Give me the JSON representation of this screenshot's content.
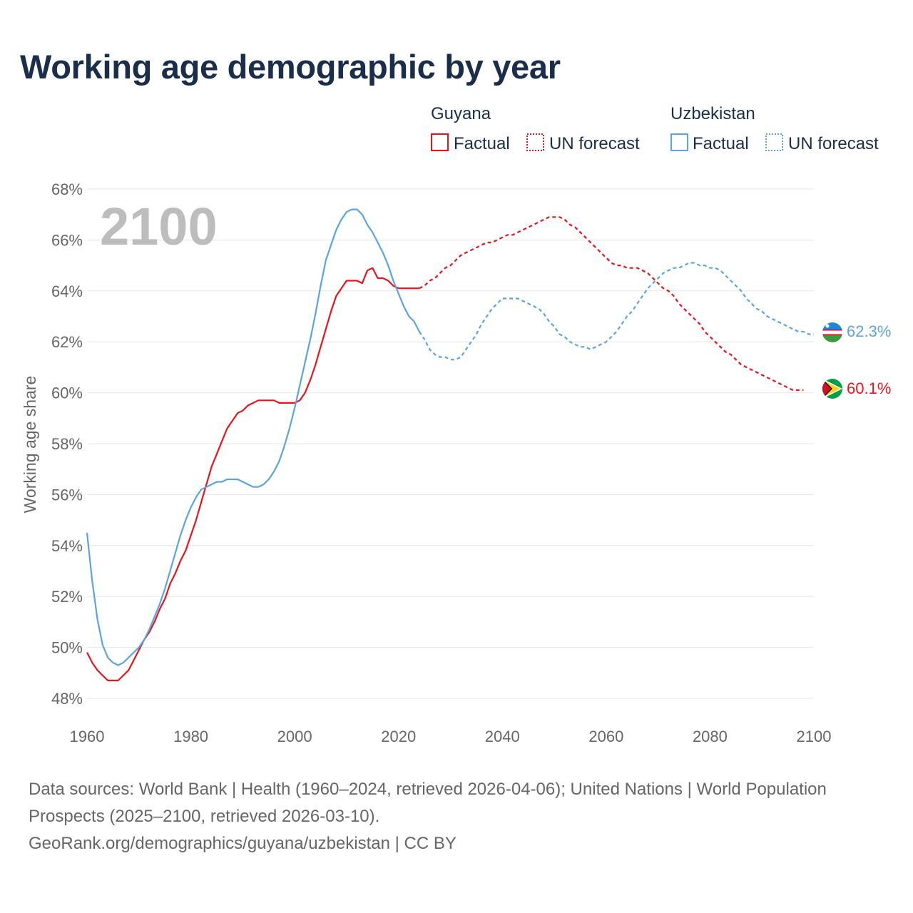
{
  "title": "Working age demographic by year",
  "legend": {
    "groups": [
      {
        "country": "Guyana",
        "color": "#e8141b",
        "factual_label": "Factual",
        "forecast_label": "UN forecast"
      },
      {
        "country": "Uzbekistan",
        "color": "#5ba4e2",
        "factual_label": "Factual",
        "forecast_label": "UN forecast"
      }
    ]
  },
  "chart_data": {
    "type": "line",
    "title": "Working age demographic by year",
    "xlabel": "",
    "ylabel": "Working age share",
    "xlim": [
      1960,
      2100
    ],
    "ylim": [
      48,
      68
    ],
    "x_ticks": [
      "1960",
      "1980",
      "2000",
      "2020",
      "2040",
      "2060",
      "2080",
      "2100"
    ],
    "y_ticks": [
      "48%",
      "50%",
      "52%",
      "54%",
      "56%",
      "58%",
      "60%",
      "62%",
      "64%",
      "66%",
      "68%"
    ],
    "year_overlay": "2100",
    "factual_until": 2024,
    "series": [
      {
        "name": "Guyana",
        "color": "#e8141b",
        "end_label": "60.1%",
        "points": [
          [
            1960,
            49.8
          ],
          [
            1961,
            49.4
          ],
          [
            1962,
            49.1
          ],
          [
            1963,
            48.9
          ],
          [
            1964,
            48.7
          ],
          [
            1965,
            48.7
          ],
          [
            1966,
            48.7
          ],
          [
            1967,
            48.9
          ],
          [
            1968,
            49.1
          ],
          [
            1969,
            49.5
          ],
          [
            1970,
            49.9
          ],
          [
            1971,
            50.3
          ],
          [
            1972,
            50.6
          ],
          [
            1973,
            51.0
          ],
          [
            1974,
            51.5
          ],
          [
            1975,
            51.9
          ],
          [
            1976,
            52.5
          ],
          [
            1977,
            52.9
          ],
          [
            1978,
            53.4
          ],
          [
            1979,
            53.8
          ],
          [
            1980,
            54.4
          ],
          [
            1981,
            55.0
          ],
          [
            1982,
            55.7
          ],
          [
            1983,
            56.4
          ],
          [
            1984,
            57.1
          ],
          [
            1985,
            57.6
          ],
          [
            1986,
            58.1
          ],
          [
            1987,
            58.6
          ],
          [
            1988,
            58.9
          ],
          [
            1989,
            59.2
          ],
          [
            1990,
            59.3
          ],
          [
            1991,
            59.5
          ],
          [
            1992,
            59.6
          ],
          [
            1993,
            59.7
          ],
          [
            1994,
            59.7
          ],
          [
            1995,
            59.7
          ],
          [
            1996,
            59.7
          ],
          [
            1997,
            59.6
          ],
          [
            1998,
            59.6
          ],
          [
            1999,
            59.6
          ],
          [
            2000,
            59.6
          ],
          [
            2001,
            59.7
          ],
          [
            2002,
            60.0
          ],
          [
            2003,
            60.5
          ],
          [
            2004,
            61.1
          ],
          [
            2005,
            61.8
          ],
          [
            2006,
            62.5
          ],
          [
            2007,
            63.2
          ],
          [
            2008,
            63.8
          ],
          [
            2009,
            64.1
          ],
          [
            2010,
            64.4
          ],
          [
            2011,
            64.4
          ],
          [
            2012,
            64.4
          ],
          [
            2013,
            64.3
          ],
          [
            2014,
            64.8
          ],
          [
            2015,
            64.9
          ],
          [
            2016,
            64.5
          ],
          [
            2017,
            64.5
          ],
          [
            2018,
            64.4
          ],
          [
            2019,
            64.2
          ],
          [
            2020,
            64.1
          ],
          [
            2021,
            64.1
          ],
          [
            2022,
            64.1
          ],
          [
            2023,
            64.1
          ],
          [
            2024,
            64.1
          ],
          [
            2025,
            64.2
          ],
          [
            2026,
            64.4
          ],
          [
            2027,
            64.5
          ],
          [
            2028,
            64.7
          ],
          [
            2029,
            64.9
          ],
          [
            2030,
            65.0
          ],
          [
            2031,
            65.2
          ],
          [
            2032,
            65.4
          ],
          [
            2033,
            65.5
          ],
          [
            2034,
            65.6
          ],
          [
            2035,
            65.7
          ],
          [
            2036,
            65.8
          ],
          [
            2037,
            65.9
          ],
          [
            2038,
            65.9
          ],
          [
            2039,
            66.0
          ],
          [
            2040,
            66.1
          ],
          [
            2041,
            66.2
          ],
          [
            2042,
            66.2
          ],
          [
            2043,
            66.3
          ],
          [
            2044,
            66.4
          ],
          [
            2045,
            66.5
          ],
          [
            2046,
            66.6
          ],
          [
            2047,
            66.7
          ],
          [
            2048,
            66.8
          ],
          [
            2049,
            66.9
          ],
          [
            2050,
            66.9
          ],
          [
            2051,
            66.9
          ],
          [
            2052,
            66.8
          ],
          [
            2053,
            66.6
          ],
          [
            2054,
            66.5
          ],
          [
            2055,
            66.3
          ],
          [
            2056,
            66.1
          ],
          [
            2057,
            65.9
          ],
          [
            2058,
            65.7
          ],
          [
            2059,
            65.5
          ],
          [
            2060,
            65.3
          ],
          [
            2061,
            65.1
          ],
          [
            2062,
            65.0
          ],
          [
            2063,
            65.0
          ],
          [
            2064,
            64.9
          ],
          [
            2065,
            64.9
          ],
          [
            2066,
            64.9
          ],
          [
            2067,
            64.8
          ],
          [
            2068,
            64.7
          ],
          [
            2069,
            64.5
          ],
          [
            2070,
            64.3
          ],
          [
            2071,
            64.1
          ],
          [
            2072,
            64.0
          ],
          [
            2073,
            63.8
          ],
          [
            2074,
            63.5
          ],
          [
            2075,
            63.3
          ],
          [
            2076,
            63.1
          ],
          [
            2077,
            62.9
          ],
          [
            2078,
            62.7
          ],
          [
            2079,
            62.4
          ],
          [
            2080,
            62.2
          ],
          [
            2081,
            62.0
          ],
          [
            2082,
            61.8
          ],
          [
            2083,
            61.6
          ],
          [
            2084,
            61.5
          ],
          [
            2085,
            61.3
          ],
          [
            2086,
            61.1
          ],
          [
            2087,
            61.0
          ],
          [
            2088,
            60.9
          ],
          [
            2089,
            60.8
          ],
          [
            2090,
            60.7
          ],
          [
            2091,
            60.6
          ],
          [
            2092,
            60.5
          ],
          [
            2093,
            60.4
          ],
          [
            2094,
            60.3
          ],
          [
            2095,
            60.2
          ],
          [
            2096,
            60.1
          ],
          [
            2097,
            60.1
          ],
          [
            2098,
            60.1
          ]
        ]
      },
      {
        "name": "Uzbekistan",
        "color": "#5ba4e2",
        "end_label": "62.3%",
        "points": [
          [
            1960,
            54.5
          ],
          [
            1961,
            52.6
          ],
          [
            1962,
            51.1
          ],
          [
            1963,
            50.1
          ],
          [
            1964,
            49.6
          ],
          [
            1965,
            49.4
          ],
          [
            1966,
            49.3
          ],
          [
            1967,
            49.4
          ],
          [
            1968,
            49.6
          ],
          [
            1969,
            49.8
          ],
          [
            1970,
            50.0
          ],
          [
            1971,
            50.3
          ],
          [
            1972,
            50.7
          ],
          [
            1973,
            51.2
          ],
          [
            1974,
            51.7
          ],
          [
            1975,
            52.3
          ],
          [
            1976,
            53.0
          ],
          [
            1977,
            53.7
          ],
          [
            1978,
            54.4
          ],
          [
            1979,
            55.0
          ],
          [
            1980,
            55.5
          ],
          [
            1981,
            55.9
          ],
          [
            1982,
            56.2
          ],
          [
            1983,
            56.3
          ],
          [
            1984,
            56.4
          ],
          [
            1985,
            56.5
          ],
          [
            1986,
            56.5
          ],
          [
            1987,
            56.6
          ],
          [
            1988,
            56.6
          ],
          [
            1989,
            56.6
          ],
          [
            1990,
            56.5
          ],
          [
            1991,
            56.4
          ],
          [
            1992,
            56.3
          ],
          [
            1993,
            56.3
          ],
          [
            1994,
            56.4
          ],
          [
            1995,
            56.6
          ],
          [
            1996,
            56.9
          ],
          [
            1997,
            57.3
          ],
          [
            1998,
            57.9
          ],
          [
            1999,
            58.6
          ],
          [
            2000,
            59.4
          ],
          [
            2001,
            60.3
          ],
          [
            2002,
            61.2
          ],
          [
            2003,
            62.1
          ],
          [
            2004,
            63.1
          ],
          [
            2005,
            64.2
          ],
          [
            2006,
            65.2
          ],
          [
            2007,
            65.8
          ],
          [
            2008,
            66.4
          ],
          [
            2009,
            66.8
          ],
          [
            2010,
            67.1
          ],
          [
            2011,
            67.2
          ],
          [
            2012,
            67.2
          ],
          [
            2013,
            67.0
          ],
          [
            2014,
            66.6
          ],
          [
            2015,
            66.3
          ],
          [
            2016,
            65.9
          ],
          [
            2017,
            65.5
          ],
          [
            2018,
            65.0
          ],
          [
            2019,
            64.4
          ],
          [
            2020,
            63.9
          ],
          [
            2021,
            63.4
          ],
          [
            2022,
            63.0
          ],
          [
            2023,
            62.8
          ],
          [
            2024,
            62.4
          ],
          [
            2025,
            62.1
          ],
          [
            2026,
            61.7
          ],
          [
            2027,
            61.5
          ],
          [
            2028,
            61.4
          ],
          [
            2029,
            61.4
          ],
          [
            2030,
            61.3
          ],
          [
            2031,
            61.3
          ],
          [
            2032,
            61.4
          ],
          [
            2033,
            61.7
          ],
          [
            2034,
            62.0
          ],
          [
            2035,
            62.3
          ],
          [
            2036,
            62.7
          ],
          [
            2037,
            63.0
          ],
          [
            2038,
            63.3
          ],
          [
            2039,
            63.5
          ],
          [
            2040,
            63.7
          ],
          [
            2041,
            63.7
          ],
          [
            2042,
            63.7
          ],
          [
            2043,
            63.7
          ],
          [
            2044,
            63.6
          ],
          [
            2045,
            63.5
          ],
          [
            2046,
            63.4
          ],
          [
            2047,
            63.3
          ],
          [
            2048,
            63.1
          ],
          [
            2049,
            62.8
          ],
          [
            2050,
            62.6
          ],
          [
            2051,
            62.3
          ],
          [
            2052,
            62.2
          ],
          [
            2053,
            62.0
          ],
          [
            2054,
            61.9
          ],
          [
            2055,
            61.8
          ],
          [
            2056,
            61.8
          ],
          [
            2057,
            61.7
          ],
          [
            2058,
            61.8
          ],
          [
            2059,
            61.9
          ],
          [
            2060,
            62.0
          ],
          [
            2061,
            62.2
          ],
          [
            2062,
            62.4
          ],
          [
            2063,
            62.7
          ],
          [
            2064,
            63.0
          ],
          [
            2065,
            63.2
          ],
          [
            2066,
            63.5
          ],
          [
            2067,
            63.8
          ],
          [
            2068,
            64.1
          ],
          [
            2069,
            64.3
          ],
          [
            2070,
            64.5
          ],
          [
            2071,
            64.7
          ],
          [
            2072,
            64.8
          ],
          [
            2073,
            64.9
          ],
          [
            2074,
            64.9
          ],
          [
            2075,
            65.0
          ],
          [
            2076,
            65.1
          ],
          [
            2077,
            65.1
          ],
          [
            2078,
            65.0
          ],
          [
            2079,
            65.0
          ],
          [
            2080,
            64.9
          ],
          [
            2081,
            64.9
          ],
          [
            2082,
            64.8
          ],
          [
            2083,
            64.6
          ],
          [
            2084,
            64.4
          ],
          [
            2085,
            64.2
          ],
          [
            2086,
            64.0
          ],
          [
            2087,
            63.7
          ],
          [
            2088,
            63.5
          ],
          [
            2089,
            63.3
          ],
          [
            2090,
            63.2
          ],
          [
            2091,
            63.0
          ],
          [
            2092,
            62.9
          ],
          [
            2093,
            62.8
          ],
          [
            2094,
            62.7
          ],
          [
            2095,
            62.6
          ],
          [
            2096,
            62.5
          ],
          [
            2097,
            62.4
          ],
          [
            2098,
            62.4
          ],
          [
            2099,
            62.3
          ],
          [
            2100,
            62.3
          ]
        ]
      }
    ]
  },
  "footer": {
    "line1": "Data sources: World Bank | Health (1960–2024, retrieved 2026-04-06); United Nations | World Population Prospects (2025–2100, retrieved 2026-03-10).",
    "line2": "GeoRank.org/demographics/guyana/uzbekistan | CC BY"
  }
}
